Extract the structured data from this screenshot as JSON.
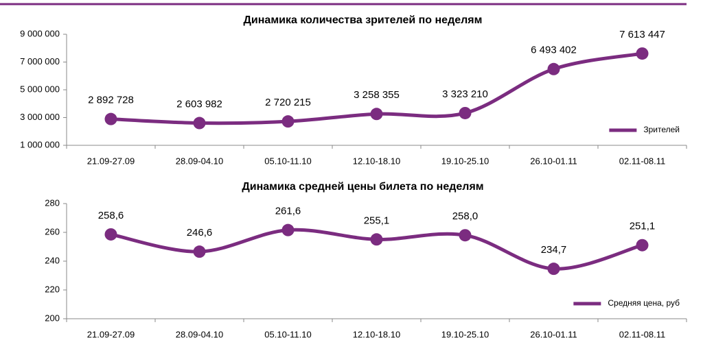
{
  "chart_data": [
    {
      "type": "line",
      "title": "Динамика количества зрителей по неделям",
      "categories": [
        "21.09-27.09",
        "28.09-04.10",
        "05.10-11.10",
        "12.10-18.10",
        "19.10-25.10",
        "26.10-01.11",
        "02.11-08.11"
      ],
      "series": [
        {
          "name": "Зрителей",
          "color": "#7b2c80",
          "values": [
            2892728,
            2603982,
            2720215,
            3258355,
            3323210,
            6493402,
            7613447
          ],
          "value_labels": [
            "2 892 728",
            "2 603 982",
            "2 720 215",
            "3 258 355",
            "3 323 210",
            "6 493 402",
            "7 613 447"
          ]
        }
      ],
      "ylim": [
        1000000,
        9000000
      ],
      "yticks": [
        {
          "value": 1000000,
          "label": "1 000 000"
        },
        {
          "value": 3000000,
          "label": "3 000 000"
        },
        {
          "value": 5000000,
          "label": "5 000 000"
        },
        {
          "value": 7000000,
          "label": "7 000 000"
        },
        {
          "value": 9000000,
          "label": "9 000 000"
        }
      ],
      "legend": "lower right",
      "smooth": true
    },
    {
      "type": "line",
      "title": "Динамика средней цены билета по неделям",
      "categories": [
        "21.09-27.09",
        "28.09-04.10",
        "05.10-11.10",
        "12.10-18.10",
        "19.10-25.10",
        "26.10-01.11",
        "02.11-08.11"
      ],
      "series": [
        {
          "name": "Средняя цена, руб",
          "color": "#7b2c80",
          "values": [
            258.6,
            246.6,
            261.6,
            255.1,
            258.0,
            234.7,
            251.1
          ],
          "value_labels": [
            "258,6",
            "246,6",
            "261,6",
            "255,1",
            "258,0",
            "234,7",
            "251,1"
          ]
        }
      ],
      "ylim": [
        200,
        280
      ],
      "yticks": [
        200,
        220,
        240,
        260,
        280
      ],
      "legend": "lower right",
      "smooth": true
    }
  ]
}
